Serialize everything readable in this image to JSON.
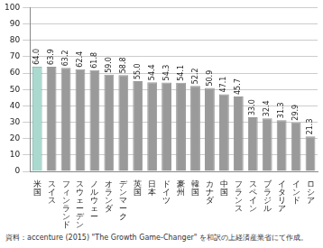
{
  "chart_data": {
    "type": "bar",
    "categories": [
      "米国",
      "スイス",
      "フィンランド",
      "スウェーデン",
      "ノルウェー",
      "オランダ",
      "デンマーク",
      "英国",
      "日本",
      "ドイツ",
      "豪州",
      "韓国",
      "カナダ",
      "中国",
      "フランス",
      "スペイン",
      "ブラジル",
      "イタリア",
      "インド",
      "ロシア"
    ],
    "values": [
      64.0,
      63.9,
      63.2,
      62.4,
      61.8,
      59.0,
      58.8,
      55.0,
      54.4,
      54.3,
      54.1,
      52.2,
      50.9,
      47.1,
      45.7,
      33.0,
      32.4,
      31.3,
      29.9,
      21.3
    ],
    "value_labels": [
      "64.0",
      "63.9",
      "63.2",
      "62.4",
      "61.8",
      "59.0",
      "58.8",
      "55.0",
      "54.4",
      "54.3",
      "54.1",
      "52.2",
      "50.9",
      "47.1",
      "45.7",
      "33.0",
      "32.4",
      "31.3",
      "29.9",
      "21.3"
    ],
    "colors": [
      "#a9d9cf",
      "#9a9a9a",
      "#9a9a9a",
      "#9a9a9a",
      "#9a9a9a",
      "#9a9a9a",
      "#9a9a9a",
      "#9a9a9a",
      "#9a9a9a",
      "#9a9a9a",
      "#9a9a9a",
      "#9a9a9a",
      "#9a9a9a",
      "#9a9a9a",
      "#9a9a9a",
      "#9a9a9a",
      "#9a9a9a",
      "#9a9a9a",
      "#9a9a9a",
      "#9a9a9a"
    ],
    "ylim": [
      0,
      100
    ],
    "yticks": [
      0,
      10,
      20,
      30,
      40,
      50,
      60,
      70,
      80,
      90,
      100
    ],
    "grid": true,
    "data_labels": true,
    "annotations": [
      "資料：accenture (2015) \"The Growth Game-Changer\" を和訳の上経済産業省にて作成。"
    ]
  }
}
